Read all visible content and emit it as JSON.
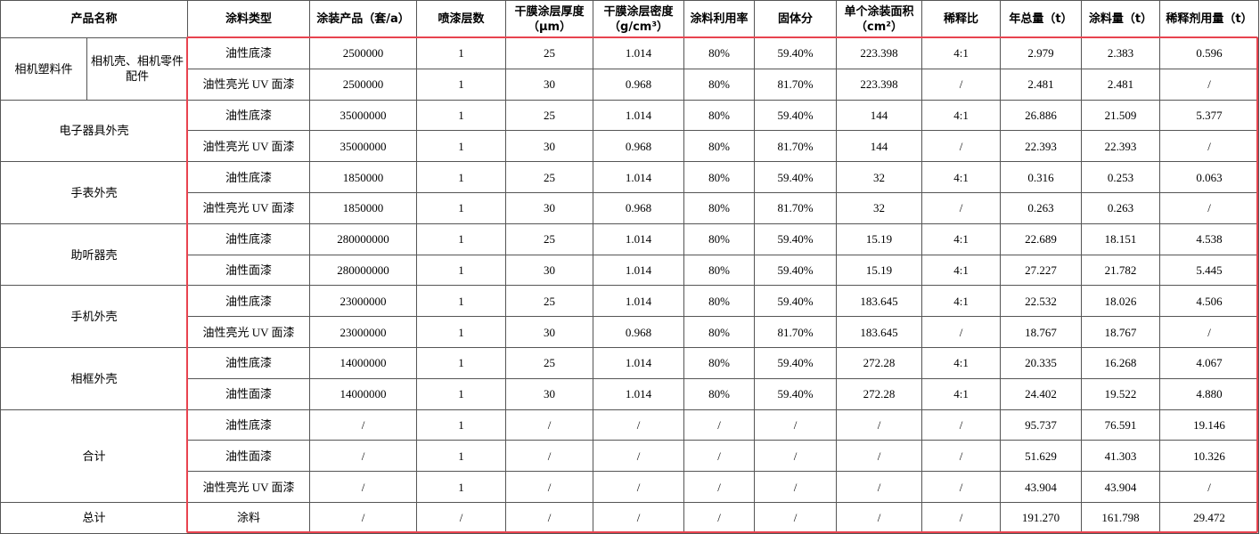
{
  "table": {
    "header": [
      "产品名称",
      "涂料类型",
      "涂装产品（套/a）",
      "喷漆层数",
      "干膜涂层厚度（μm）",
      "干膜涂层密度（g/cm³）",
      "涂料利用率",
      "固体分",
      "单个涂装面积（cm²）",
      "稀释比",
      "年总量（t）",
      "涂料量（t）",
      "稀释剂用量（t）"
    ],
    "groups": [
      {
        "name": "相机塑料件",
        "subname": "相机壳、相机零件配件",
        "rows": [
          [
            "油性底漆",
            "2500000",
            "1",
            "25",
            "1.014",
            "80%",
            "59.40%",
            "223.398",
            "4:1",
            "2.979",
            "2.383",
            "0.596"
          ],
          [
            "油性亮光 UV 面漆",
            "2500000",
            "1",
            "30",
            "0.968",
            "80%",
            "81.70%",
            "223.398",
            "/",
            "2.481",
            "2.481",
            "/"
          ]
        ]
      },
      {
        "name": "电子器具外壳",
        "rows": [
          [
            "油性底漆",
            "35000000",
            "1",
            "25",
            "1.014",
            "80%",
            "59.40%",
            "144",
            "4:1",
            "26.886",
            "21.509",
            "5.377"
          ],
          [
            "油性亮光 UV 面漆",
            "35000000",
            "1",
            "30",
            "0.968",
            "80%",
            "81.70%",
            "144",
            "/",
            "22.393",
            "22.393",
            "/"
          ]
        ]
      },
      {
        "name": "手表外壳",
        "rows": [
          [
            "油性底漆",
            "1850000",
            "1",
            "25",
            "1.014",
            "80%",
            "59.40%",
            "32",
            "4:1",
            "0.316",
            "0.253",
            "0.063"
          ],
          [
            "油性亮光 UV 面漆",
            "1850000",
            "1",
            "30",
            "0.968",
            "80%",
            "81.70%",
            "32",
            "/",
            "0.263",
            "0.263",
            "/"
          ]
        ]
      },
      {
        "name": "助听器壳",
        "rows": [
          [
            "油性底漆",
            "280000000",
            "1",
            "25",
            "1.014",
            "80%",
            "59.40%",
            "15.19",
            "4:1",
            "22.689",
            "18.151",
            "4.538"
          ],
          [
            "油性面漆",
            "280000000",
            "1",
            "30",
            "1.014",
            "80%",
            "59.40%",
            "15.19",
            "4:1",
            "27.227",
            "21.782",
            "5.445"
          ]
        ]
      },
      {
        "name": "手机外壳",
        "rows": [
          [
            "油性底漆",
            "23000000",
            "1",
            "25",
            "1.014",
            "80%",
            "59.40%",
            "183.645",
            "4:1",
            "22.532",
            "18.026",
            "4.506"
          ],
          [
            "油性亮光 UV 面漆",
            "23000000",
            "1",
            "30",
            "0.968",
            "80%",
            "81.70%",
            "183.645",
            "/",
            "18.767",
            "18.767",
            "/"
          ]
        ]
      },
      {
        "name": "相框外壳",
        "rows": [
          [
            "油性底漆",
            "14000000",
            "1",
            "25",
            "1.014",
            "80%",
            "59.40%",
            "272.28",
            "4:1",
            "20.335",
            "16.268",
            "4.067"
          ],
          [
            "油性面漆",
            "14000000",
            "1",
            "30",
            "1.014",
            "80%",
            "59.40%",
            "272.28",
            "4:1",
            "24.402",
            "19.522",
            "4.880"
          ]
        ]
      },
      {
        "name": "合计",
        "rows": [
          [
            "油性底漆",
            "/",
            "1",
            "/",
            "/",
            "/",
            "/",
            "/",
            "/",
            "95.737",
            "76.591",
            "19.146"
          ],
          [
            "油性面漆",
            "/",
            "1",
            "/",
            "/",
            "/",
            "/",
            "/",
            "/",
            "51.629",
            "41.303",
            "10.326"
          ],
          [
            "油性亮光 UV 面漆",
            "/",
            "1",
            "/",
            "/",
            "/",
            "/",
            "/",
            "/",
            "43.904",
            "43.904",
            "/"
          ]
        ]
      },
      {
        "name": "总计",
        "rows": [
          [
            "涂料",
            "/",
            "/",
            "/",
            "/",
            "/",
            "/",
            "/",
            "/",
            "191.270",
            "161.798",
            "29.472"
          ]
        ]
      }
    ]
  }
}
